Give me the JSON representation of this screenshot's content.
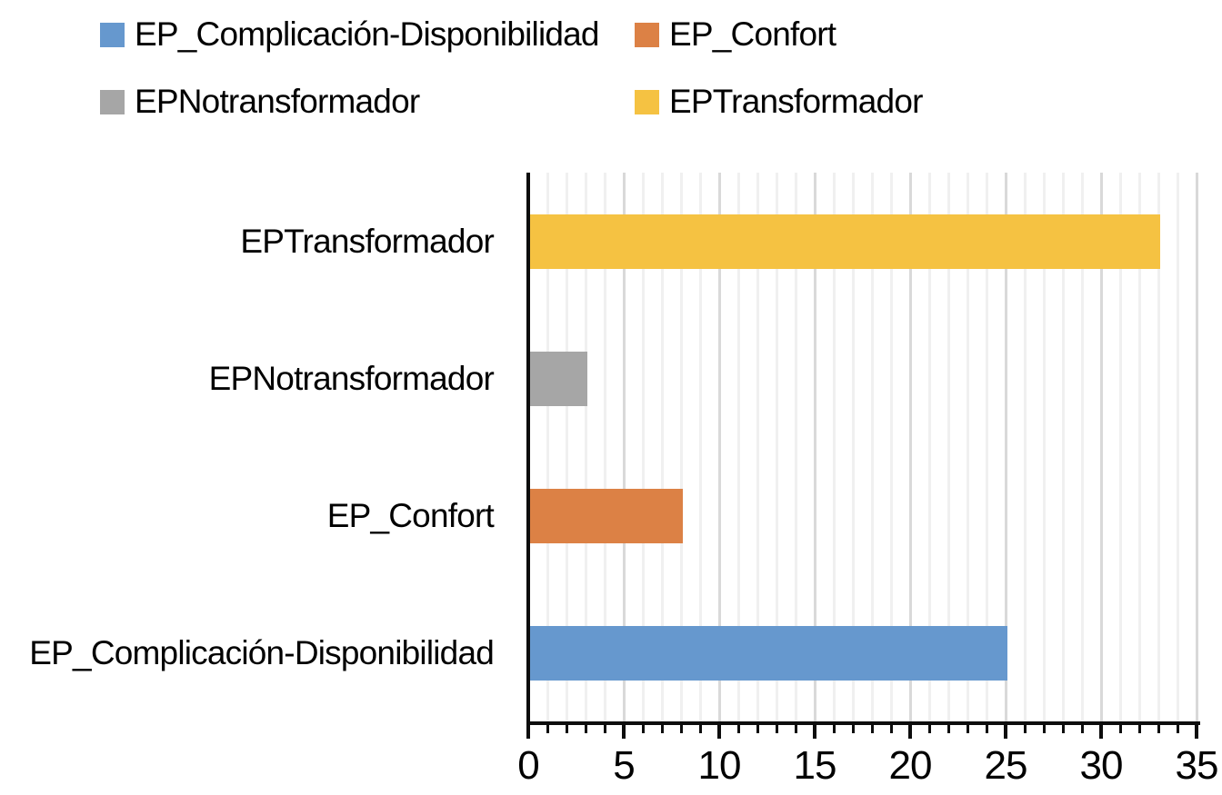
{
  "chart_data": {
    "type": "bar",
    "orientation": "horizontal",
    "title": "",
    "xlabel": "",
    "ylabel": "",
    "categories": [
      "EPTransformador",
      "EPNotransformador",
      "EP_Confort",
      "EP_Complicación-Disponibilidad"
    ],
    "values": [
      33,
      3,
      8,
      25
    ],
    "bar_colors": [
      "#F5C242",
      "#A6A6A6",
      "#DC8145",
      "#6698CE"
    ],
    "xlim": [
      0,
      35
    ],
    "x_major_step": 5,
    "x_minor_step": 1,
    "x_tick_labels": [
      "0",
      "5",
      "10",
      "15",
      "20",
      "25",
      "30",
      "35"
    ],
    "grid": true,
    "legend_position": "top",
    "legend": [
      {
        "label": "EP_Complicación-Disponibilidad",
        "color": "#6698CE"
      },
      {
        "label": "EP_Confort",
        "color": "#DC8145"
      },
      {
        "label": "EPNotransformador",
        "color": "#A6A6A6"
      },
      {
        "label": "EPTransformador",
        "color": "#F5C242"
      }
    ],
    "colors": {
      "axis": "#0d0d0d",
      "gridline_minor": "#f0f0f0",
      "gridline_major": "#d9d9d9",
      "text": "#000000",
      "background": "#ffffff"
    }
  }
}
